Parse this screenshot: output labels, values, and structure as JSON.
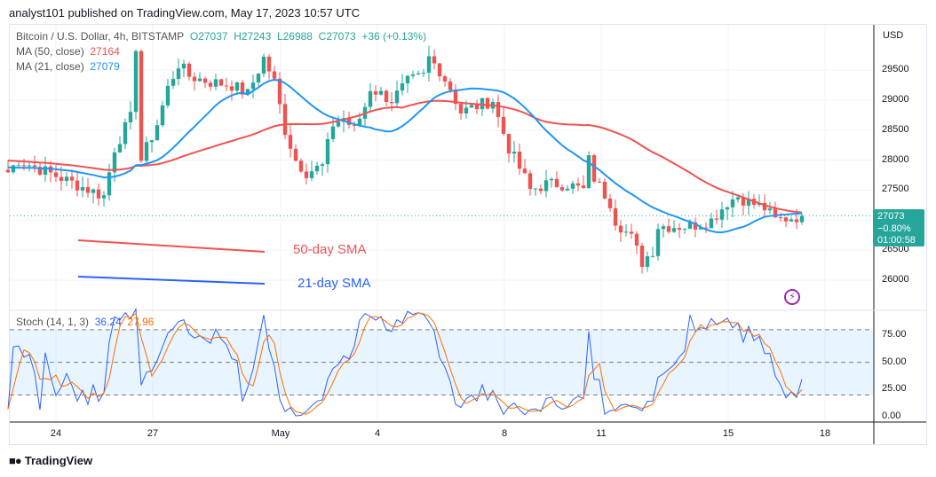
{
  "header": {
    "published": "analyst101 published on TradingView.com, May 17, 2023 10:57 UTC"
  },
  "legend": {
    "symbol": "Bitcoin / U.S. Dollar, 4h, BITSTAMP",
    "open": "O27037",
    "high": "H27243",
    "low": "L26988",
    "close": "C27073",
    "change": "+36 (+0.13%)",
    "ma50_label": "MA (50, close)",
    "ma50_value": "27164",
    "ma21_label": "MA (21, close)",
    "ma21_value": "27079",
    "stoch_label": "Stoch (14, 1, 3)",
    "stoch_k": "36.24",
    "stoch_d": "27.96"
  },
  "price_axis": {
    "currency": "USD",
    "ticks": [
      "29500",
      "29000",
      "28500",
      "28000",
      "27500",
      "26500",
      "26000"
    ],
    "last_price": "27073",
    "last_change": "−0.80%",
    "countdown": "01:00:58"
  },
  "stoch_axis": {
    "ticks": [
      "75.00",
      "50.00",
      "25.00",
      "0.00"
    ]
  },
  "time_axis": {
    "ticks": [
      "24",
      "27",
      "May",
      "4",
      "8",
      "11",
      "15",
      "18"
    ]
  },
  "annotations": {
    "sma50": "50-day SMA",
    "sma21": "21-day SMA"
  },
  "colors": {
    "up": "#26a69a",
    "down": "#ef5350",
    "ma50": "#ef5350",
    "ma21": "#2196f3",
    "stoch_k": "#2962ff",
    "stoch_d": "#ff6d00",
    "annot_blue": "#2962ff"
  },
  "footer": {
    "brand": "TradingView"
  },
  "chart_data": {
    "type": "candlestick",
    "timeframe": "4h",
    "ylim": [
      25700,
      30000
    ],
    "price_keypoints": [
      [
        "04-22 12",
        27800
      ],
      [
        "04-22 20",
        28000
      ],
      [
        "04-25 12",
        27400
      ],
      [
        "04-25 20",
        28200
      ],
      [
        "04-26 08",
        28700
      ],
      [
        "04-26 12",
        29900
      ],
      [
        "04-26 16",
        28000
      ],
      [
        "04-27 04",
        28600
      ],
      [
        "04-27 12",
        29200
      ],
      [
        "04-27 20",
        29600
      ],
      [
        "04-28 04",
        29400
      ],
      [
        "04-28 20",
        29300
      ],
      [
        "04-29 12",
        29250
      ],
      [
        "04-30 00",
        29100
      ],
      [
        "04-30 12",
        29700
      ],
      [
        "04-30 20",
        29300
      ],
      [
        "05-01 04",
        28500
      ],
      [
        "05-01 12",
        28000
      ],
      [
        "05-01 20",
        27800
      ],
      [
        "05-02 08",
        27900
      ],
      [
        "05-02 16",
        28600
      ],
      [
        "05-03 00",
        28700
      ],
      [
        "05-03 08",
        28500
      ],
      [
        "05-03 16",
        28900
      ],
      [
        "05-03 20",
        29200
      ],
      [
        "05-04 12",
        29000
      ],
      [
        "05-05 00",
        29300
      ],
      [
        "05-05 12",
        29400
      ],
      [
        "05-05 16",
        29700
      ],
      [
        "05-06 00",
        29500
      ],
      [
        "05-06 08",
        29200
      ],
      [
        "05-06 16",
        28800
      ],
      [
        "05-07 04",
        28900
      ],
      [
        "05-07 16",
        29000
      ],
      [
        "05-07 20",
        28700
      ],
      [
        "05-08 04",
        28200
      ],
      [
        "05-08 16",
        27700
      ],
      [
        "05-08 20",
        27500
      ],
      [
        "05-09 08",
        27600
      ],
      [
        "05-10 00",
        27600
      ],
      [
        "05-10 12",
        27500
      ],
      [
        "05-10 16",
        28000
      ],
      [
        "05-10 20",
        27700
      ],
      [
        "05-11 08",
        27300
      ],
      [
        "05-11 12",
        27000
      ],
      [
        "05-12 00",
        26700
      ],
      [
        "05-12 08",
        26300
      ],
      [
        "05-12 16",
        26500
      ],
      [
        "05-12 20",
        26900
      ],
      [
        "05-13 08",
        26900
      ],
      [
        "05-13 20",
        26900
      ],
      [
        "05-14 12",
        27000
      ],
      [
        "05-14 20",
        27200
      ],
      [
        "05-15 00",
        27300
      ],
      [
        "05-15 08",
        27400
      ],
      [
        "05-15 16",
        27300
      ],
      [
        "05-16 04",
        27200
      ],
      [
        "05-16 12",
        27000
      ],
      [
        "05-17 08",
        27073
      ]
    ],
    "indicators": [
      "MA 50",
      "MA 21",
      "Stoch (14,1,3)"
    ],
    "stoch_levels": [
      80,
      20
    ]
  }
}
